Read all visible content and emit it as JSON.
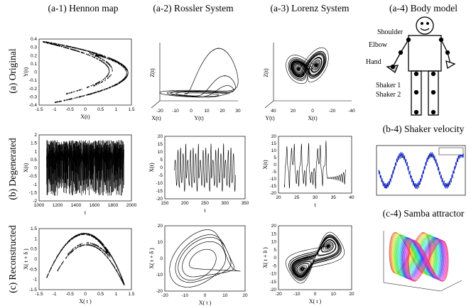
{
  "columns": [
    "(a-1) Hennon map",
    "(a-2) Rossler System",
    "(a-3) Lorenz System",
    "(a-4) Body model"
  ],
  "rows": [
    "(a) Original",
    "(b) Degenerated",
    "(c) Reconstructed"
  ],
  "side_panels": [
    "(b-4) Shaker velocity",
    "(c-4) Samba attractor"
  ],
  "body_labels": [
    "Shoulder",
    "Elbow",
    "Hand",
    "Shaker 1",
    "Shaker 2"
  ],
  "panels": [
    {
      "xlabel": "X(t)",
      "ylabel": "Y(t)",
      "xticks": [
        "-1.5",
        "-1",
        "-0.5",
        "0",
        "0.5",
        "1",
        "1.5"
      ],
      "yticks": [
        "0.4",
        "0.3",
        "0.2",
        "0.1",
        "0",
        "-0.1",
        "-0.2",
        "-0.3",
        "-0.4"
      ]
    },
    {
      "xlabel": "X(t)",
      "ylabel": "Z(t)",
      "zlabel": "Y(t)",
      "xticks": [
        "-20",
        "-10",
        "0",
        "10",
        "20",
        "30"
      ],
      "yticks": []
    },
    {
      "xlabel": "Y(t)",
      "ylabel": "Z(t)",
      "zlabel": "X(t)",
      "xticks": [
        "40",
        "20",
        "0",
        "-20",
        "-40"
      ],
      "yticks": []
    },
    {
      "xlabel": "t",
      "ylabel": "X(t)",
      "xticks": [
        "1000",
        "1200",
        "1400",
        "1600",
        "1800",
        "2000"
      ],
      "yticks": [
        "2",
        "1.5",
        "1",
        "0.5",
        "0",
        "-0.5",
        "-1",
        "-1.5",
        "-2"
      ]
    },
    {
      "xlabel": "t",
      "ylabel": "X(t)",
      "xticks": [
        "150",
        "200",
        "250",
        "300",
        "350"
      ],
      "yticks": [
        "20",
        "15",
        "10",
        "5",
        "0",
        "-5",
        "-10",
        "-15",
        "-20"
      ]
    },
    {
      "xlabel": "t",
      "ylabel": "X(t)",
      "xticks": [
        "20",
        "25",
        "30",
        "35",
        "40"
      ],
      "yticks": [
        "20",
        "15",
        "10",
        "5",
        "0",
        "-5",
        "-10",
        "-15",
        "-20"
      ]
    },
    {
      "xlabel": "X( t )",
      "ylabel": "X( t + δ )",
      "xticks": [
        "-1.5",
        "-1",
        "-0.5",
        "0",
        "0.5",
        "1",
        "1.5"
      ],
      "yticks": [
        "1.5",
        "1",
        "0.5",
        "0",
        "-0.5",
        "-1",
        "-1.5"
      ]
    },
    {
      "xlabel": "X( t )",
      "ylabel": "X( t + δ )",
      "xticks": [
        "-20",
        "-10",
        "0",
        "10",
        "20"
      ],
      "yticks": [
        "20",
        "10",
        "0",
        "-10",
        "-20"
      ]
    },
    {
      "xlabel": "X( t )",
      "ylabel": "X( t + δ )",
      "xticks": [
        "-20",
        "-10",
        "0",
        "10",
        "20"
      ],
      "yticks": [
        "20",
        "15",
        "10",
        "5",
        "0",
        "-5",
        "-10",
        "-15",
        "-20"
      ]
    }
  ]
}
